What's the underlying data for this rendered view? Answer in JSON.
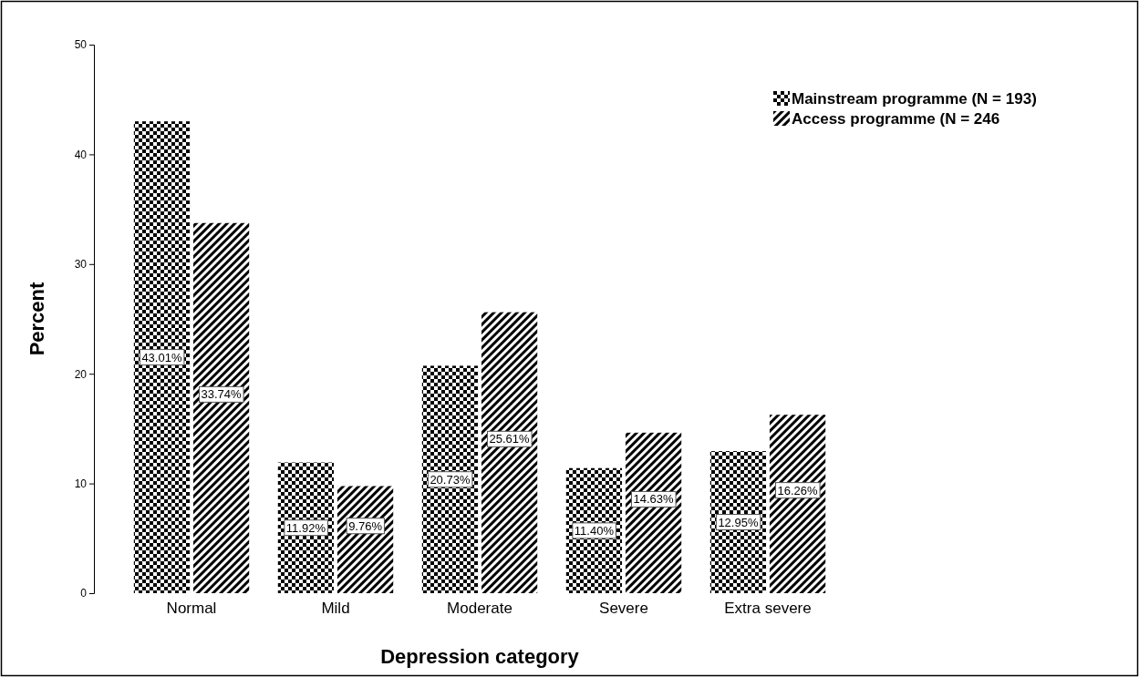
{
  "chart_data": {
    "type": "bar",
    "xlabel": "Depression category",
    "ylabel": "Percent",
    "categories": [
      "Normal",
      "Mild",
      "Moderate",
      "Severe",
      "Extra severe"
    ],
    "series": [
      {
        "name": "Mainstream programme (N = 193)",
        "color": "#000000",
        "values": [
          43.01,
          11.92,
          20.73,
          11.4,
          12.95
        ],
        "value_labels": [
          "43.01%",
          "11.92%",
          "20.73%",
          "11.40%",
          "12.95%"
        ]
      },
      {
        "name": "Access programme (N = 246",
        "color": "#000000",
        "values": [
          33.74,
          9.76,
          25.61,
          14.63,
          16.26
        ],
        "value_labels": [
          "33.74%",
          "9.76%",
          "25.61%",
          "14.63%",
          "16.26%"
        ]
      }
    ],
    "ylim": [
      0,
      50
    ],
    "yticks": [
      0,
      10,
      20,
      30,
      40,
      50
    ],
    "grid": false,
    "legend": "top right"
  }
}
